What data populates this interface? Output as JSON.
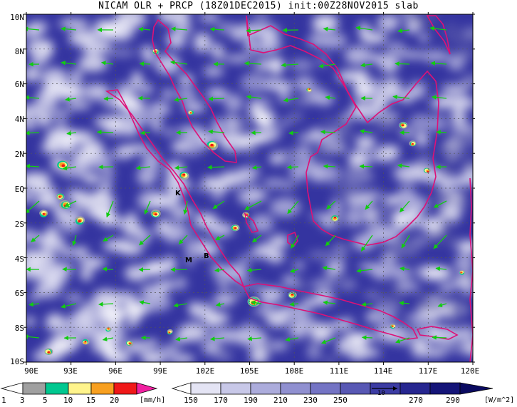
{
  "title": "NICAM OLR + PRCP (18Z01DEC2015) init:00Z28NOV2015 slab",
  "map": {
    "lat_labels": [
      "10N",
      "8N",
      "6N",
      "4N",
      "2N",
      "EQ",
      "2S",
      "4S",
      "6S",
      "8S",
      "10S"
    ],
    "lon_labels": [
      "90E",
      "93E",
      "96E",
      "99E",
      "102E",
      "105E",
      "108E",
      "111E",
      "114E",
      "117E",
      "120E"
    ],
    "extent": {
      "lon_min": 90,
      "lon_max": 120,
      "lat_min": -10,
      "lat_max": 10
    },
    "place_markers": [
      "K",
      "M",
      "B"
    ],
    "vector_ref_label": "10",
    "colors": {
      "coastline": "#dd1177",
      "wind": "#11cc11",
      "ocean_high_olr": "#1a1a8a"
    }
  },
  "precip_legend": {
    "labels": [
      "1",
      "3",
      "5",
      "10",
      "15",
      "20"
    ],
    "unit": "[mm/h]",
    "colors": [
      "#ffffff",
      "#a0a0a0",
      "#00c890",
      "#fff48c",
      "#f8a020",
      "#f01818",
      "#f020a0"
    ]
  },
  "olr_legend": {
    "labels": [
      "150",
      "170",
      "190",
      "210",
      "230",
      "250",
      "270",
      "290"
    ],
    "unit": "[W/m^2]",
    "colors": [
      "#ffffff",
      "#e4e4f4",
      "#c8c8e8",
      "#acacdc",
      "#9090d0",
      "#7474c4",
      "#5858b4",
      "#3c3ca4",
      "#262690",
      "#141478",
      "#0a0a60"
    ]
  }
}
